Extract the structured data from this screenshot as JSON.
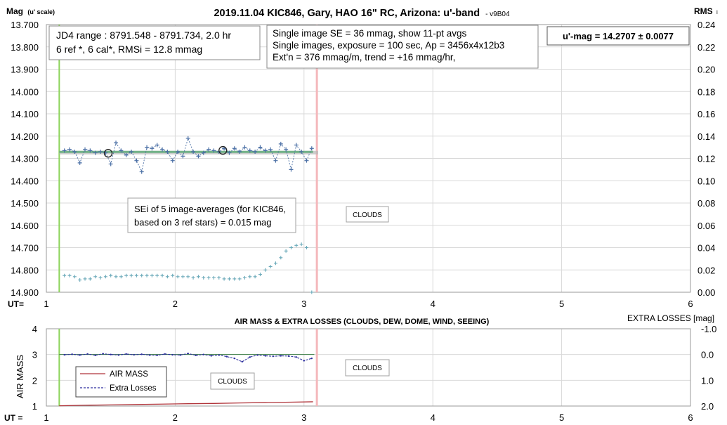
{
  "chart_data": [
    {
      "type": "scatter",
      "title": "2019.11.04 KIC846, Gary, HAO 16\" RC, Arizona: u'-band",
      "version": "- v9B04",
      "ylabel_left": "Mag",
      "ylabel_left_note": "(u' scale)",
      "ylabel_right": "RMS",
      "ylabel_right_note": "i",
      "xlabel": "UT=",
      "xlim": [
        1,
        6
      ],
      "ylim_left": [
        13.7,
        14.9
      ],
      "ylim_right": [
        0.24,
        0.0
      ],
      "x_ticks": [
        "1",
        "2",
        "3",
        "4",
        "5",
        "6"
      ],
      "y_ticks_left": [
        "13.700",
        "13.800",
        "13.900",
        "14.000",
        "14.100",
        "14.200",
        "14.300",
        "14.400",
        "14.500",
        "14.600",
        "14.700",
        "14.800",
        "14.900"
      ],
      "y_ticks_right": [
        "0.24",
        "0.22",
        "0.20",
        "0.18",
        "0.16",
        "0.14",
        "0.12",
        "0.10",
        "0.08",
        "0.06",
        "0.04",
        "0.02",
        "0.00"
      ],
      "grid": true,
      "colors": {
        "mag": "#4a6fa5",
        "avg": "#2f4f7f",
        "fit": "#72b287",
        "rms": "#6aa9b9",
        "start_line": "#8cd45a",
        "end_line": "#f4b8bc"
      },
      "start_ut": 1.1,
      "end_ut": 3.1,
      "fit_level": 14.2707,
      "series": [
        {
          "name": "mag",
          "x": [
            1.14,
            1.18,
            1.22,
            1.26,
            1.3,
            1.34,
            1.38,
            1.42,
            1.46,
            1.5,
            1.54,
            1.58,
            1.62,
            1.66,
            1.7,
            1.74,
            1.78,
            1.82,
            1.86,
            1.9,
            1.94,
            1.98,
            2.02,
            2.06,
            2.1,
            2.14,
            2.18,
            2.22,
            2.26,
            2.3,
            2.34,
            2.38,
            2.42,
            2.46,
            2.5,
            2.54,
            2.58,
            2.62,
            2.66,
            2.7,
            2.74,
            2.78,
            2.82,
            2.86,
            2.9,
            2.94,
            2.98,
            3.02,
            3.06
          ],
          "y": [
            14.265,
            14.26,
            14.27,
            14.32,
            14.26,
            14.265,
            14.275,
            14.27,
            14.275,
            14.325,
            14.23,
            14.265,
            14.285,
            14.27,
            14.31,
            14.36,
            14.25,
            14.255,
            14.24,
            14.26,
            14.27,
            14.31,
            14.27,
            14.29,
            14.21,
            14.27,
            14.29,
            14.275,
            14.26,
            14.265,
            14.27,
            14.255,
            14.275,
            14.255,
            14.27,
            14.25,
            14.265,
            14.27,
            14.25,
            14.265,
            14.26,
            14.31,
            14.235,
            14.26,
            14.35,
            14.24,
            14.27,
            14.31,
            14.255
          ]
        },
        {
          "name": "avg",
          "x": [
            1.48,
            2.37
          ],
          "y": [
            14.277,
            14.264
          ]
        },
        {
          "name": "rms",
          "x": [
            1.14,
            1.18,
            1.22,
            1.26,
            1.3,
            1.34,
            1.38,
            1.42,
            1.46,
            1.5,
            1.54,
            1.58,
            1.62,
            1.66,
            1.7,
            1.74,
            1.78,
            1.82,
            1.86,
            1.9,
            1.94,
            1.98,
            2.02,
            2.06,
            2.1,
            2.14,
            2.18,
            2.22,
            2.26,
            2.3,
            2.34,
            2.38,
            2.42,
            2.46,
            2.5,
            2.54,
            2.58,
            2.62,
            2.66,
            2.7,
            2.74,
            2.78,
            2.82,
            2.86,
            2.9,
            2.94,
            2.98,
            3.02,
            3.06
          ],
          "y": [
            0.015,
            0.015,
            0.014,
            0.011,
            0.012,
            0.012,
            0.014,
            0.013,
            0.014,
            0.015,
            0.014,
            0.014,
            0.015,
            0.015,
            0.015,
            0.015,
            0.015,
            0.015,
            0.015,
            0.015,
            0.014,
            0.015,
            0.014,
            0.014,
            0.014,
            0.013,
            0.014,
            0.013,
            0.013,
            0.013,
            0.013,
            0.012,
            0.012,
            0.012,
            0.012,
            0.013,
            0.014,
            0.014,
            0.016,
            0.02,
            0.023,
            0.026,
            0.031,
            0.037,
            0.04,
            0.042,
            0.043,
            0.04,
            0.0
          ]
        }
      ],
      "annotations": {
        "jd_box": [
          "JD4 range : 8791.548 - 8791.734,  2.0  hr",
          "6 ref *, 6 cal*, RMSi = 12.8 mmag"
        ],
        "se_box": [
          "Single image SE = 36 mmag, show  11-pt avgs",
          "Single images, exposure = 100 sec, Ap = 3456x4x12b3",
          "Ext'n = 376 mmag/m, trend =  +16 mmag/hr,"
        ],
        "result_box": "u'-mag = 14.2707 ± 0.0077",
        "sei_box": [
          "SEi of 5 image-averages (for KIC846,",
          "based on 3 ref stars) = 0.015 mag"
        ],
        "clouds": "CLOUDS"
      }
    },
    {
      "type": "line",
      "title": "AIR MASS & EXTRA LOSSES (CLOUDS, DEW, DOME, WIND, SEEING)",
      "ylabel_left": "AIR MASS",
      "ylabel_right": "EXTRA LOSSES [mag]",
      "xlabel": "UT =",
      "xlim": [
        1,
        6
      ],
      "ylim_left": [
        1,
        4
      ],
      "ylim_right": [
        2.0,
        -1.0
      ],
      "x_ticks": [
        "1",
        "2",
        "3",
        "4",
        "5",
        "6"
      ],
      "y_ticks_left": [
        "4",
        "3",
        "2",
        "1"
      ],
      "y_ticks_right": [
        "-1.0",
        "0.0",
        "1.0",
        "2.0"
      ],
      "legend": [
        "AIR MASS",
        "Extra Losses"
      ],
      "clouds_labels": [
        "CLOUDS",
        "CLOUDS"
      ],
      "colors": {
        "airmass": "#b0343a",
        "losses": "#2d2f9e",
        "zero_line": "#3a7d44"
      },
      "series": [
        {
          "name": "AIR MASS",
          "x": [
            1.1,
            1.3,
            1.5,
            1.7,
            1.9,
            2.1,
            2.3,
            2.5,
            2.7,
            2.9,
            3.07
          ],
          "y": [
            1.01,
            1.03,
            1.045,
            1.06,
            1.075,
            1.09,
            1.1,
            1.12,
            1.135,
            1.15,
            1.165
          ]
        },
        {
          "name": "Extra Losses",
          "x": [
            1.14,
            1.2,
            1.26,
            1.32,
            1.38,
            1.44,
            1.5,
            1.56,
            1.62,
            1.68,
            1.74,
            1.8,
            1.86,
            1.92,
            1.98,
            2.04,
            2.1,
            2.16,
            2.22,
            2.28,
            2.34,
            2.4,
            2.46,
            2.52,
            2.58,
            2.64,
            2.7,
            2.76,
            2.82,
            2.88,
            2.94,
            3.0,
            3.06
          ],
          "y": [
            0.01,
            -0.01,
            0.02,
            -0.02,
            0.03,
            -0.03,
            0.0,
            0.02,
            -0.02,
            0.01,
            -0.01,
            0.02,
            0.03,
            -0.02,
            0.01,
            0.02,
            -0.04,
            0.03,
            0.0,
            0.05,
            0.02,
            0.08,
            0.15,
            0.28,
            0.1,
            0.02,
            0.05,
            0.07,
            0.05,
            0.06,
            0.1,
            0.24,
            0.15
          ]
        }
      ]
    }
  ]
}
